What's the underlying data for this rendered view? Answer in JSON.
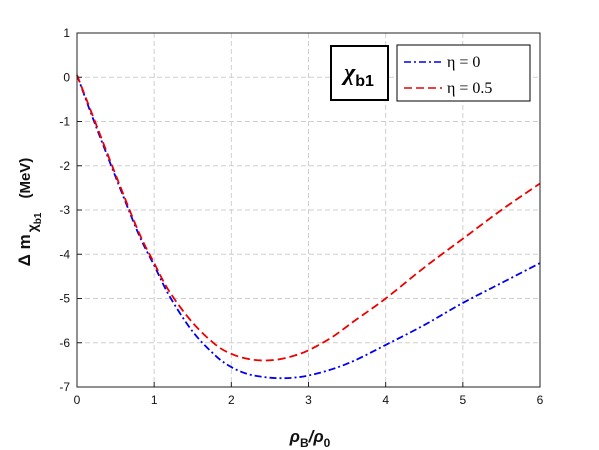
{
  "chart_data": {
    "type": "line",
    "title": "",
    "inset_label": "χ",
    "inset_label_sub": "b1",
    "xlabel": {
      "main": "ρ",
      "sub": "B",
      "mid": "/ρ",
      "sub2": "0"
    },
    "ylabel": {
      "main": "Δ m",
      "sub": "χ",
      "subsub": "b1",
      "unit": "(MeV)"
    },
    "xlim": [
      0,
      6
    ],
    "ylim": [
      -7,
      1
    ],
    "xticks": [
      0,
      1,
      2,
      3,
      4,
      5,
      6
    ],
    "yticks": [
      1,
      0,
      -1,
      -2,
      -3,
      -4,
      -5,
      -6,
      -7
    ],
    "grid": true,
    "legend_position": "top-right",
    "series": [
      {
        "name": "η = 0",
        "color": "#0000ee",
        "style": "dash-dot",
        "x": [
          0,
          0.2,
          0.5,
          0.8,
          1.0,
          1.2,
          1.5,
          1.8,
          2.0,
          2.2,
          2.4,
          2.6,
          2.8,
          3.0,
          3.3,
          3.6,
          4.0,
          4.5,
          5.0,
          5.5,
          6.0
        ],
        "y": [
          0.05,
          -0.9,
          -2.25,
          -3.55,
          -4.25,
          -4.95,
          -5.75,
          -6.3,
          -6.55,
          -6.7,
          -6.77,
          -6.8,
          -6.79,
          -6.74,
          -6.6,
          -6.4,
          -6.05,
          -5.6,
          -5.1,
          -4.65,
          -4.2
        ]
      },
      {
        "name": "η = 0.5",
        "color": "#ee0000",
        "style": "dashed",
        "x": [
          0,
          0.2,
          0.5,
          0.8,
          1.0,
          1.2,
          1.5,
          1.8,
          2.0,
          2.2,
          2.4,
          2.6,
          2.8,
          3.0,
          3.3,
          3.6,
          4.0,
          4.5,
          5.0,
          5.5,
          6.0
        ],
        "y": [
          0.05,
          -0.85,
          -2.2,
          -3.5,
          -4.2,
          -4.85,
          -5.55,
          -6.05,
          -6.25,
          -6.36,
          -6.4,
          -6.38,
          -6.3,
          -6.17,
          -5.88,
          -5.5,
          -5.0,
          -4.3,
          -3.65,
          -3.0,
          -2.4
        ]
      }
    ]
  }
}
